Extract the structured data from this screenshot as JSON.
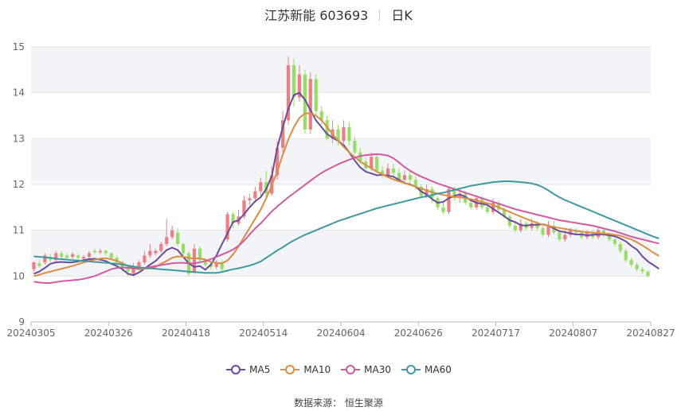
{
  "header": {
    "title": "江苏新能 603693",
    "period": "日K"
  },
  "source": "数据来源： 恒生聚源",
  "colors": {
    "up": "#f07c82",
    "down": "#95de64",
    "MA5": "#6a4c9c",
    "MA10": "#dd8d44",
    "MA30": "#d15aa2",
    "MA60": "#3f9aa0",
    "band": "#f3f4f8",
    "grid": "#e6e6e6"
  },
  "chart_data": {
    "type": "candlestick",
    "ylim": [
      9,
      15
    ],
    "yticks": [
      9,
      10,
      11,
      12,
      13,
      14,
      15
    ],
    "xtick_labels": [
      "20240305",
      "20240326",
      "20240418",
      "20240514",
      "20240604",
      "20240626",
      "20240717",
      "20240807",
      "20240827"
    ],
    "xtick_positions": [
      0,
      14,
      28,
      42,
      56,
      70,
      84,
      98,
      112
    ],
    "legend": [
      "MA5",
      "MA10",
      "MA30",
      "MA60"
    ],
    "legend_position": "bottom",
    "candles": [
      [
        10.15,
        10.3,
        10.1,
        10.32
      ],
      [
        10.28,
        10.22,
        10.18,
        10.35
      ],
      [
        10.3,
        10.45,
        10.25,
        10.5
      ],
      [
        10.4,
        10.35,
        10.3,
        10.48
      ],
      [
        10.35,
        10.5,
        10.32,
        10.55
      ],
      [
        10.5,
        10.42,
        10.38,
        10.55
      ],
      [
        10.45,
        10.4,
        10.35,
        10.5
      ],
      [
        10.42,
        10.48,
        10.38,
        10.52
      ],
      [
        10.45,
        10.4,
        10.35,
        10.5
      ],
      [
        10.38,
        10.42,
        10.34,
        10.46
      ],
      [
        10.42,
        10.5,
        10.38,
        10.55
      ],
      [
        10.55,
        10.52,
        10.48,
        10.6
      ],
      [
        10.52,
        10.55,
        10.48,
        10.6
      ],
      [
        10.55,
        10.5,
        10.45,
        10.58
      ],
      [
        10.5,
        10.4,
        10.35,
        10.52
      ],
      [
        10.4,
        10.3,
        10.25,
        10.45
      ],
      [
        10.3,
        10.2,
        10.1,
        10.35
      ],
      [
        10.2,
        10.1,
        10.0,
        10.25
      ],
      [
        10.05,
        10.2,
        10.0,
        10.28
      ],
      [
        10.2,
        10.3,
        10.15,
        10.35
      ],
      [
        10.3,
        10.45,
        10.25,
        10.55
      ],
      [
        10.45,
        10.55,
        10.4,
        10.7
      ],
      [
        10.5,
        10.55,
        10.45,
        10.6
      ],
      [
        10.55,
        10.7,
        10.5,
        10.75
      ],
      [
        10.7,
        10.85,
        10.65,
        11.25
      ],
      [
        10.85,
        11.0,
        10.8,
        11.1
      ],
      [
        10.95,
        10.7,
        10.65,
        11.05
      ],
      [
        10.7,
        10.5,
        10.45,
        10.72
      ],
      [
        10.5,
        10.05,
        10.0,
        10.55
      ],
      [
        10.1,
        10.6,
        10.05,
        10.7
      ],
      [
        10.6,
        10.35,
        10.3,
        10.65
      ],
      [
        10.35,
        10.25,
        10.2,
        10.4
      ],
      [
        10.25,
        10.2,
        10.15,
        10.3
      ],
      [
        10.2,
        10.3,
        10.15,
        10.35
      ],
      [
        10.3,
        10.15,
        10.1,
        10.35
      ],
      [
        10.8,
        11.35,
        10.75,
        11.4
      ],
      [
        11.35,
        11.15,
        11.05,
        11.4
      ],
      [
        11.15,
        11.3,
        11.1,
        11.45
      ],
      [
        11.3,
        11.65,
        11.25,
        11.75
      ],
      [
        11.65,
        11.7,
        11.55,
        11.8
      ],
      [
        11.7,
        11.85,
        11.6,
        11.95
      ],
      [
        11.85,
        12.05,
        11.75,
        12.15
      ],
      [
        12.05,
        11.8,
        11.7,
        12.3
      ],
      [
        11.8,
        12.2,
        11.75,
        12.4
      ],
      [
        12.2,
        12.8,
        12.1,
        12.95
      ],
      [
        12.8,
        13.4,
        12.7,
        13.6
      ],
      [
        13.4,
        14.6,
        13.3,
        14.8
      ],
      [
        14.6,
        13.9,
        13.7,
        14.75
      ],
      [
        13.9,
        14.4,
        13.8,
        14.6
      ],
      [
        14.4,
        13.2,
        13.1,
        14.5
      ],
      [
        13.2,
        14.3,
        13.1,
        14.45
      ],
      [
        14.3,
        13.6,
        13.5,
        14.4
      ],
      [
        13.6,
        13.4,
        13.3,
        13.7
      ],
      [
        13.4,
        13.0,
        12.95,
        13.5
      ],
      [
        13.0,
        13.2,
        12.9,
        13.4
      ],
      [
        13.2,
        12.95,
        12.85,
        13.3
      ],
      [
        12.95,
        13.25,
        12.9,
        13.4
      ],
      [
        13.25,
        12.95,
        12.85,
        13.35
      ],
      [
        12.95,
        12.7,
        12.65,
        13.05
      ],
      [
        12.7,
        12.5,
        12.45,
        12.8
      ],
      [
        12.5,
        12.35,
        12.3,
        12.6
      ],
      [
        12.35,
        12.6,
        12.3,
        12.7
      ],
      [
        12.6,
        12.3,
        12.25,
        12.65
      ],
      [
        12.3,
        12.2,
        12.15,
        12.4
      ],
      [
        12.2,
        12.35,
        12.15,
        12.45
      ],
      [
        12.35,
        12.25,
        12.15,
        12.45
      ],
      [
        12.25,
        12.1,
        12.05,
        12.35
      ],
      [
        12.1,
        12.2,
        12.05,
        12.3
      ],
      [
        12.2,
        12.1,
        12.0,
        12.3
      ],
      [
        12.1,
        11.95,
        11.9,
        12.2
      ],
      [
        11.95,
        11.75,
        11.7,
        12.0
      ],
      [
        11.75,
        11.9,
        11.7,
        12.0
      ],
      [
        11.9,
        11.7,
        11.6,
        11.95
      ],
      [
        11.7,
        11.5,
        11.45,
        11.75
      ],
      [
        11.5,
        11.4,
        11.35,
        11.6
      ],
      [
        11.4,
        11.9,
        11.35,
        11.95
      ],
      [
        11.9,
        11.7,
        11.65,
        11.95
      ],
      [
        11.7,
        11.8,
        11.6,
        11.9
      ],
      [
        11.8,
        11.6,
        11.55,
        11.85
      ],
      [
        11.6,
        11.5,
        11.45,
        11.7
      ],
      [
        11.5,
        11.7,
        11.45,
        11.75
      ],
      [
        11.7,
        11.5,
        11.45,
        11.75
      ],
      [
        11.5,
        11.4,
        11.35,
        11.6
      ],
      [
        11.4,
        11.6,
        11.35,
        11.7
      ],
      [
        11.6,
        11.45,
        11.4,
        11.65
      ],
      [
        11.45,
        11.3,
        11.25,
        11.5
      ],
      [
        11.3,
        11.1,
        11.05,
        11.35
      ],
      [
        11.1,
        11.0,
        10.95,
        11.2
      ],
      [
        11.0,
        11.15,
        10.95,
        11.25
      ],
      [
        11.15,
        11.05,
        11.0,
        11.2
      ],
      [
        11.05,
        11.15,
        11.0,
        11.25
      ],
      [
        11.15,
        11.05,
        11.0,
        11.2
      ],
      [
        11.05,
        10.9,
        10.85,
        11.1
      ],
      [
        10.9,
        11.1,
        10.85,
        11.2
      ],
      [
        11.1,
        10.95,
        10.9,
        11.2
      ],
      [
        10.95,
        10.8,
        10.75,
        11.0
      ],
      [
        10.8,
        10.9,
        10.75,
        11.0
      ],
      [
        10.9,
        11.0,
        10.85,
        11.05
      ],
      [
        11.0,
        10.95,
        10.9,
        11.05
      ],
      [
        10.95,
        10.85,
        10.8,
        11.0
      ],
      [
        10.85,
        10.95,
        10.8,
        11.0
      ],
      [
        10.95,
        10.85,
        10.8,
        11.0
      ],
      [
        10.85,
        11.0,
        10.8,
        11.05
      ],
      [
        11.0,
        10.9,
        10.85,
        11.05
      ],
      [
        10.9,
        10.8,
        10.75,
        10.95
      ],
      [
        10.8,
        10.7,
        10.65,
        10.85
      ],
      [
        10.7,
        10.55,
        10.5,
        10.75
      ],
      [
        10.55,
        10.35,
        10.3,
        10.6
      ],
      [
        10.35,
        10.25,
        10.2,
        10.4
      ],
      [
        10.25,
        10.15,
        10.1,
        10.3
      ],
      [
        10.15,
        10.1,
        10.05,
        10.2
      ],
      [
        10.1,
        10.0,
        9.98,
        10.12
      ]
    ],
    "series": [
      {
        "name": "MA5",
        "values": [
          10.05,
          10.1,
          10.18,
          10.27,
          10.3,
          10.31,
          10.3,
          10.3,
          10.32,
          10.35,
          10.37,
          10.38,
          10.36,
          10.33,
          10.27,
          10.22,
          10.15,
          10.05,
          10.02,
          10.08,
          10.16,
          10.25,
          10.33,
          10.45,
          10.57,
          10.62,
          10.57,
          10.42,
          10.28,
          10.2,
          10.22,
          10.14,
          10.25,
          10.45,
          10.7,
          10.93,
          11.18,
          11.22,
          11.35,
          11.5,
          11.63,
          11.72,
          11.9,
          12.18,
          12.8,
          13.25,
          13.65,
          13.95,
          14.0,
          13.85,
          13.62,
          13.4,
          13.25,
          13.1,
          13.02,
          12.95,
          12.86,
          12.7,
          12.52,
          12.37,
          12.28,
          12.24,
          12.2,
          12.21,
          12.19,
          12.17,
          12.1,
          12.03,
          12.0,
          11.95,
          11.85,
          11.78,
          11.68,
          11.6,
          11.62,
          11.7,
          11.75,
          11.78,
          11.73,
          11.65,
          11.6,
          11.58,
          11.55,
          11.47,
          11.39,
          11.31,
          11.22,
          11.18,
          11.11,
          11.1,
          11.12,
          11.12,
          11.13,
          11.1,
          11.04,
          10.98,
          10.96,
          10.93,
          10.91,
          10.91,
          10.89,
          10.9,
          10.91,
          10.91,
          10.89,
          10.87,
          10.82,
          10.76,
          10.66,
          10.58,
          10.43,
          10.32,
          10.24,
          10.16
        ]
      },
      {
        "name": "MA10",
        "values": [
          10.0,
          10.03,
          10.07,
          10.1,
          10.13,
          10.16,
          10.19,
          10.22,
          10.26,
          10.3,
          10.33,
          10.36,
          10.38,
          10.39,
          10.37,
          10.33,
          10.28,
          10.22,
          10.17,
          10.15,
          10.16,
          10.17,
          10.2,
          10.27,
          10.33,
          10.4,
          10.43,
          10.42,
          10.4,
          10.38,
          10.39,
          10.36,
          10.31,
          10.29,
          10.28,
          10.34,
          10.47,
          10.65,
          10.85,
          11.05,
          11.25,
          11.45,
          11.7,
          11.98,
          12.28,
          12.65,
          12.98,
          13.25,
          13.45,
          13.55,
          13.55,
          13.5,
          13.4,
          13.25,
          13.1,
          12.95,
          12.82,
          12.7,
          12.6,
          12.5,
          12.42,
          12.35,
          12.28,
          12.22,
          12.16,
          12.11,
          12.07,
          12.03,
          11.99,
          11.95,
          11.91,
          11.87,
          11.83,
          11.8,
          11.77,
          11.75,
          11.73,
          11.72,
          11.7,
          11.68,
          11.65,
          11.62,
          11.59,
          11.55,
          11.5,
          11.45,
          11.4,
          11.35,
          11.3,
          11.25,
          11.2,
          11.16,
          11.12,
          11.1,
          11.07,
          11.05,
          11.03,
          11.01,
          10.99,
          10.97,
          10.96,
          10.95,
          10.94,
          10.93,
          10.92,
          10.9,
          10.88,
          10.84,
          10.8,
          10.74,
          10.67,
          10.59,
          10.51,
          10.44
        ]
      },
      {
        "name": "MA30",
        "values": [
          9.88,
          9.86,
          9.85,
          9.85,
          9.87,
          9.89,
          9.9,
          9.91,
          9.92,
          9.94,
          9.97,
          10.0,
          10.05,
          10.1,
          10.15,
          10.18,
          10.19,
          10.18,
          10.17,
          10.17,
          10.18,
          10.2,
          10.22,
          10.24,
          10.26,
          10.28,
          10.29,
          10.29,
          10.28,
          10.28,
          10.3,
          10.33,
          10.37,
          10.42,
          10.47,
          10.52,
          10.58,
          10.66,
          10.77,
          10.91,
          11.04,
          11.15,
          11.28,
          11.41,
          11.52,
          11.62,
          11.72,
          11.81,
          11.9,
          11.99,
          12.08,
          12.17,
          12.25,
          12.32,
          12.38,
          12.44,
          12.49,
          12.54,
          12.58,
          12.62,
          12.64,
          12.65,
          12.66,
          12.65,
          12.63,
          12.57,
          12.48,
          12.38,
          12.3,
          12.23,
          12.17,
          12.12,
          12.07,
          12.02,
          11.98,
          11.94,
          11.9,
          11.86,
          11.82,
          11.78,
          11.74,
          11.7,
          11.66,
          11.62,
          11.58,
          11.54,
          11.5,
          11.46,
          11.43,
          11.4,
          11.37,
          11.34,
          11.31,
          11.28,
          11.25,
          11.22,
          11.2,
          11.18,
          11.16,
          11.14,
          11.12,
          11.1,
          11.07,
          11.04,
          11.01,
          10.98,
          10.94,
          10.9,
          10.86,
          10.83,
          10.8,
          10.77,
          10.74,
          10.71
        ]
      },
      {
        "name": "MA60",
        "values": [
          10.43,
          10.42,
          10.41,
          10.4,
          10.38,
          10.37,
          10.36,
          10.35,
          10.34,
          10.33,
          10.32,
          10.31,
          10.3,
          10.29,
          10.28,
          10.27,
          10.25,
          10.23,
          10.21,
          10.19,
          10.18,
          10.17,
          10.16,
          10.15,
          10.14,
          10.13,
          10.12,
          10.11,
          10.1,
          10.09,
          10.08,
          10.07,
          10.07,
          10.07,
          10.09,
          10.12,
          10.15,
          10.17,
          10.2,
          10.23,
          10.27,
          10.32,
          10.4,
          10.48,
          10.56,
          10.63,
          10.71,
          10.78,
          10.84,
          10.9,
          10.95,
          11.0,
          11.05,
          11.1,
          11.15,
          11.2,
          11.24,
          11.28,
          11.32,
          11.36,
          11.4,
          11.44,
          11.48,
          11.51,
          11.54,
          11.57,
          11.6,
          11.63,
          11.66,
          11.69,
          11.72,
          11.74,
          11.77,
          11.8,
          11.82,
          11.85,
          11.88,
          11.91,
          11.94,
          11.97,
          11.99,
          12.01,
          12.03,
          12.05,
          12.06,
          12.07,
          12.07,
          12.06,
          12.05,
          12.04,
          12.02,
          11.99,
          11.94,
          11.87,
          11.79,
          11.72,
          11.66,
          11.61,
          11.56,
          11.51,
          11.46,
          11.41,
          11.36,
          11.31,
          11.26,
          11.21,
          11.16,
          11.11,
          11.06,
          11.01,
          10.96,
          10.91,
          10.86,
          10.82
        ]
      }
    ]
  }
}
